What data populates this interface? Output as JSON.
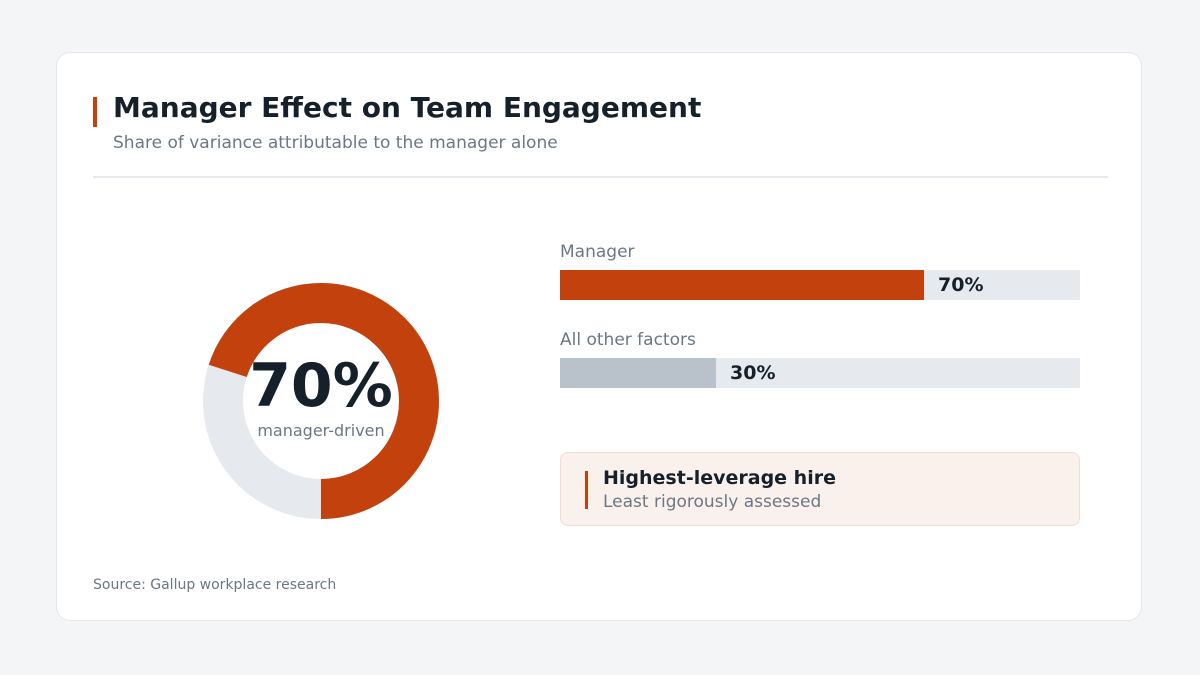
{
  "header": {
    "title": "Manager Effect on Team Engagement",
    "subtitle": "Share of variance attributable to the manager alone"
  },
  "donut": {
    "value_label": "70%",
    "caption": "manager-driven"
  },
  "callout": {
    "title": "Highest-leverage hire",
    "subtitle": "Least rigorously assessed"
  },
  "source": "Source: Gallup workplace research",
  "colors": {
    "accent": "#c2410c",
    "muted": "#b9c2cb",
    "track": "#e6e9ee"
  },
  "chart_data": {
    "type": "bar",
    "title": "Manager Effect on Team Engagement",
    "subtitle": "Share of variance attributable to the manager alone",
    "categories": [
      "Manager",
      "All other factors"
    ],
    "values": [
      70,
      30
    ],
    "value_labels": [
      "70%",
      "30%"
    ],
    "unit": "%",
    "xlim": [
      0,
      100
    ],
    "grid": false,
    "donut": {
      "type": "pie",
      "segments": [
        {
          "name": "Manager",
          "value": 70
        },
        {
          "name": "All other factors",
          "value": 30
        }
      ]
    }
  }
}
